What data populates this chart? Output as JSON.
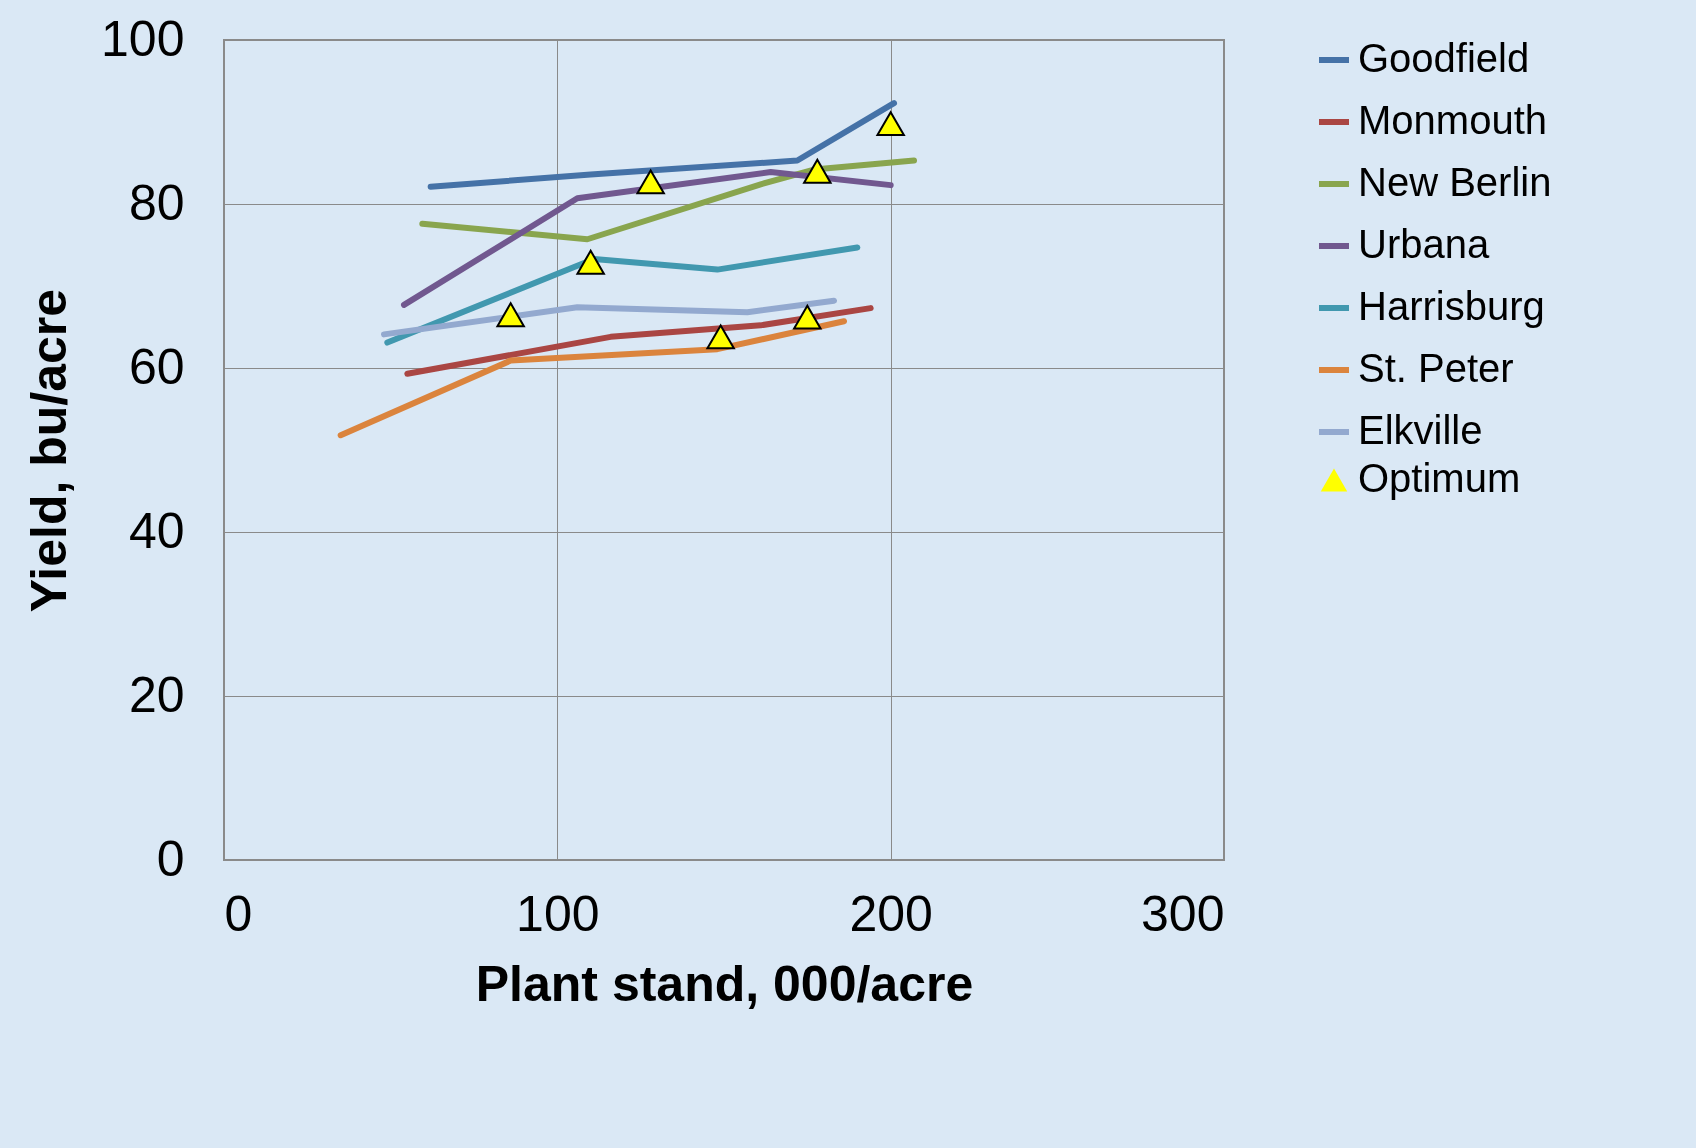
{
  "chart_data": {
    "type": "line",
    "xlabel": "Plant stand, 000/acre",
    "ylabel": "Yield, bu/acre",
    "xlim": [
      0,
      300
    ],
    "xticks": [
      0,
      100,
      200,
      300
    ],
    "ylim": [
      0,
      100
    ],
    "yticks": [
      0,
      20,
      40,
      60,
      80,
      100
    ],
    "grid": true,
    "legend": "right",
    "line_style": "solid",
    "marker": "none",
    "series": [
      {
        "name": "Goodfield",
        "color": "#4572a7",
        "x": [
          62,
          110,
          172,
          201
        ],
        "values": [
          82.1,
          83.6,
          85.3,
          92.3
        ]
      },
      {
        "name": "Monmouth",
        "color": "#aa4643",
        "x": [
          55,
          116,
          161,
          194
        ],
        "values": [
          59.3,
          63.8,
          65.2,
          67.3
        ]
      },
      {
        "name": "New Berlin",
        "color": "#89a54e",
        "x": [
          59.5,
          109,
          161,
          177,
          207
        ],
        "values": [
          77.6,
          75.7,
          82.4,
          84.2,
          85.3
        ]
      },
      {
        "name": "Urbana",
        "color": "#71588f",
        "x": [
          54,
          106,
          164,
          200
        ],
        "values": [
          67.7,
          80.7,
          83.9,
          82.3
        ]
      },
      {
        "name": "Harrisburg",
        "color": "#4198af",
        "x": [
          49,
          111,
          148,
          190
        ],
        "values": [
          63.1,
          73.3,
          72,
          74.7
        ]
      },
      {
        "name": "St. Peter",
        "color": "#db843d",
        "x": [
          35,
          86,
          148,
          186
        ],
        "values": [
          51.8,
          60.9,
          62.3,
          65.7
        ]
      },
      {
        "name": "Elkville",
        "color": "#93a9cf",
        "x": [
          48,
          106,
          157,
          183
        ],
        "values": [
          64.1,
          67.4,
          66.8,
          68.2
        ]
      },
      {
        "name": "Optimum",
        "type": "scatter",
        "marker": "triangle",
        "color": "#ffff00",
        "x": [
          86,
          110,
          128,
          149,
          175,
          178,
          200
        ],
        "values": [
          66.5,
          72.9,
          82.7,
          63.8,
          66.2,
          84,
          89.8
        ]
      }
    ]
  }
}
